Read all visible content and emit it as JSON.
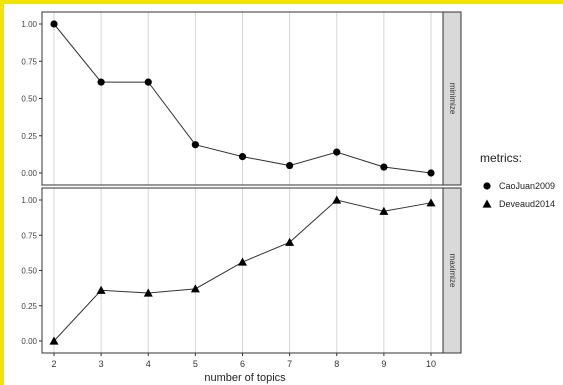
{
  "colors": {
    "frame_accent": "#f2e300",
    "strip_fill": "#d9d9d9",
    "grid": "#d6d6d6",
    "series": "#000000"
  },
  "chart_data": {
    "type": "line",
    "xlabel": "number of topics",
    "ylabel": "",
    "x": [
      2,
      3,
      4,
      5,
      6,
      7,
      8,
      9,
      10
    ],
    "ylim": [
      0,
      1
    ],
    "yticks": [
      "0.00",
      "0.25",
      "0.50",
      "0.75",
      "1.00"
    ],
    "grid": true,
    "legend": {
      "title": "metrics:",
      "placement": "right",
      "entries": [
        "CaoJuan2009",
        "Deveaud2014"
      ]
    },
    "panels": [
      {
        "strip": "minimize",
        "series": [
          {
            "name": "CaoJuan2009",
            "marker": "circle",
            "values": [
              1.0,
              0.61,
              0.61,
              0.19,
              0.11,
              0.05,
              0.14,
              0.04,
              0.0
            ]
          }
        ]
      },
      {
        "strip": "maximize",
        "series": [
          {
            "name": "Deveaud2014",
            "marker": "triangle",
            "values": [
              0.0,
              0.36,
              0.34,
              0.37,
              0.56,
              0.7,
              1.0,
              0.92,
              0.98
            ]
          }
        ]
      }
    ]
  }
}
